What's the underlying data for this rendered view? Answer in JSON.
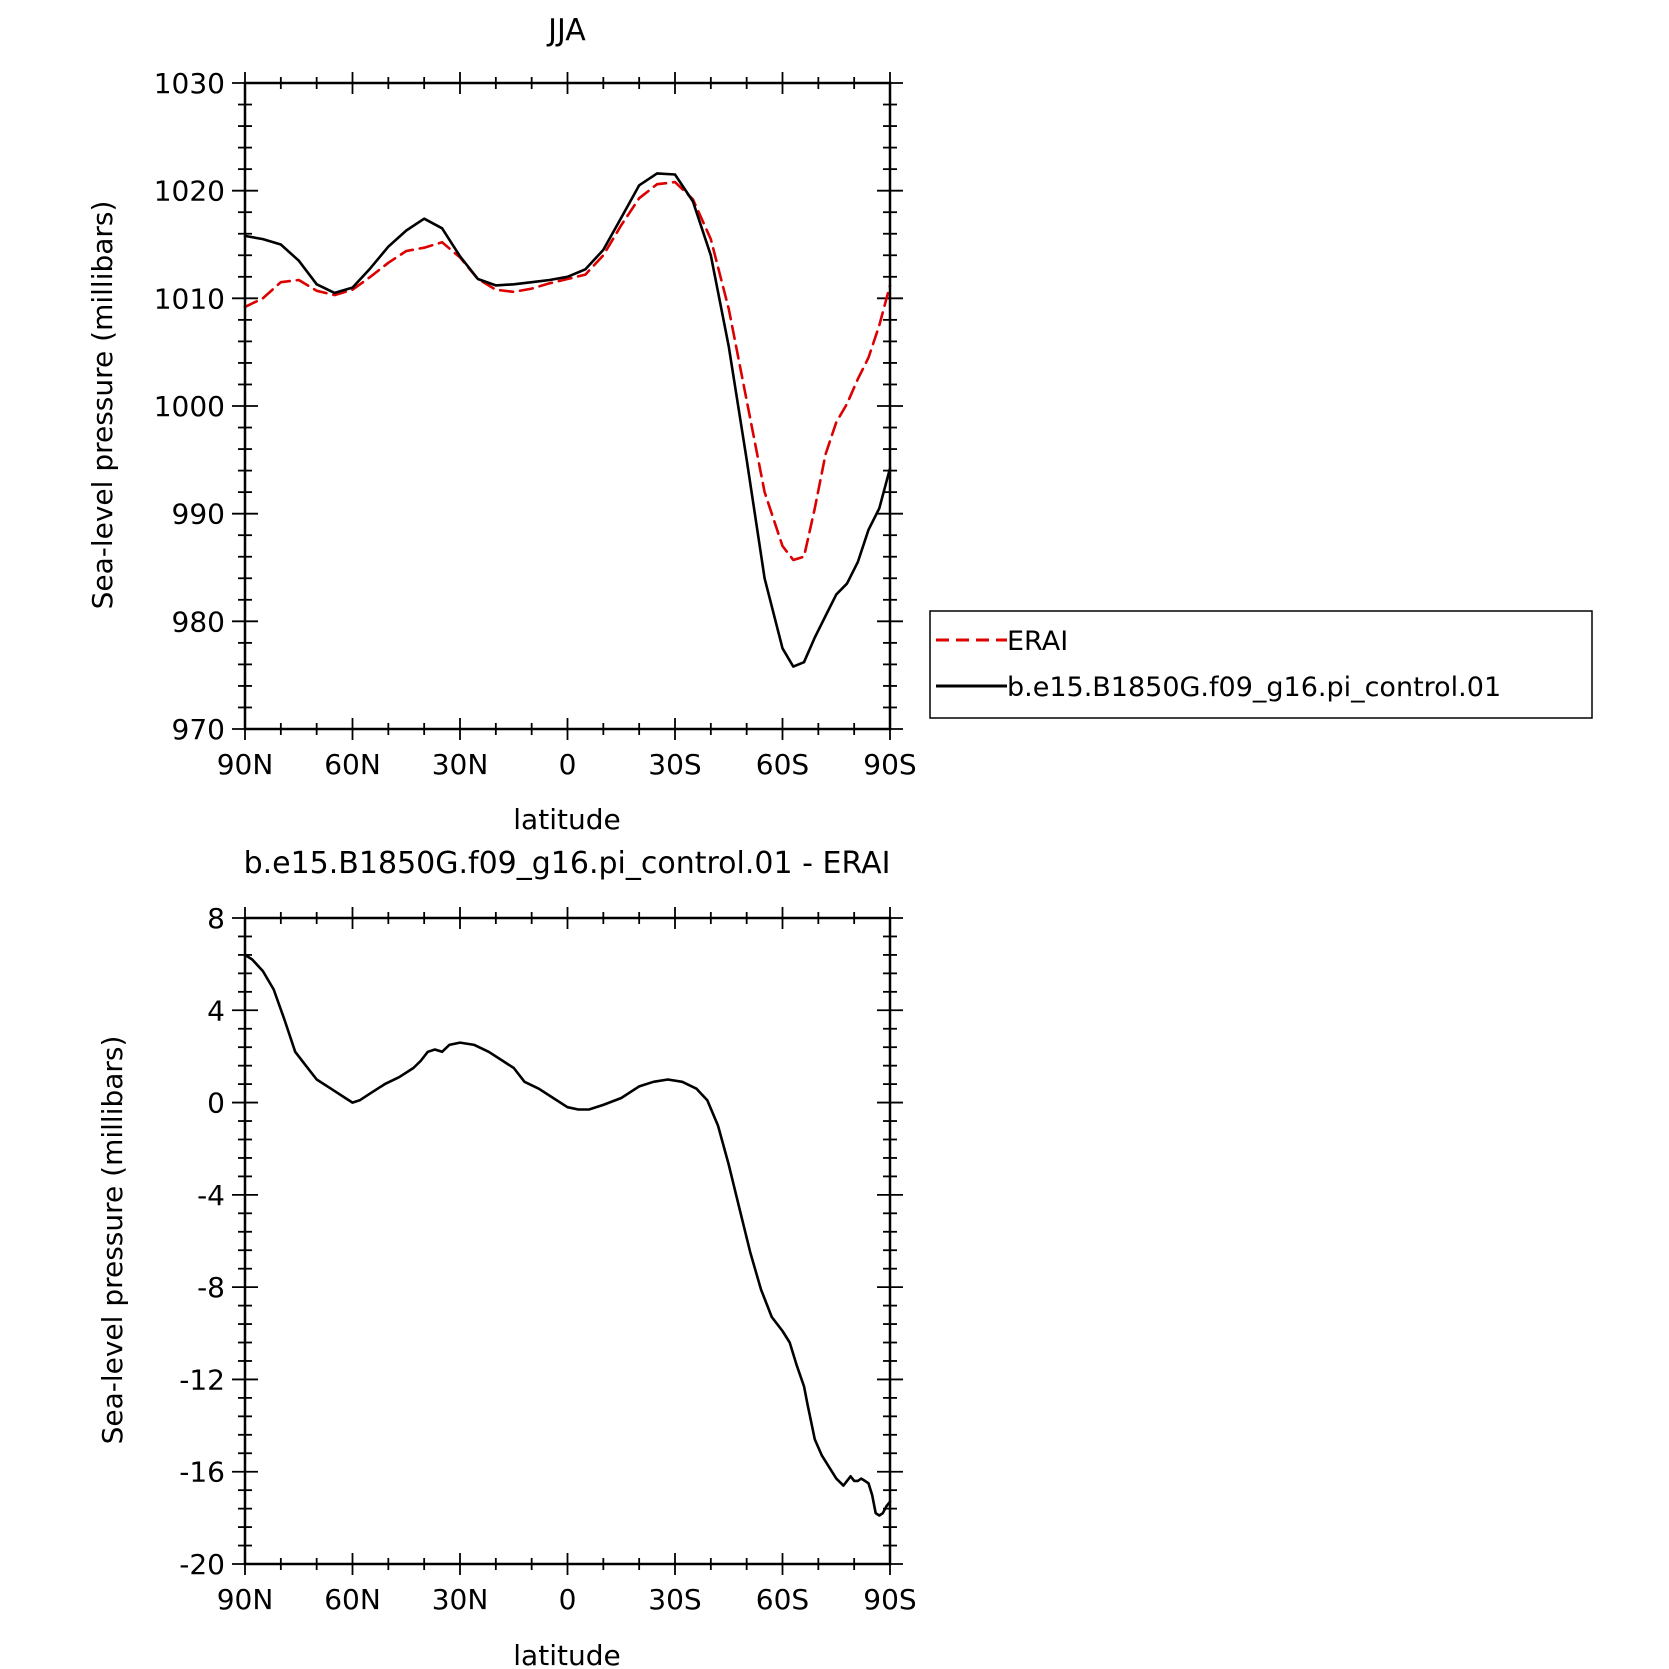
{
  "chart_data": [
    {
      "type": "line",
      "title": "JJA",
      "xlabel": "latitude",
      "ylabel": "Sea-level pressure (millibars)",
      "xlim": [
        90,
        -90
      ],
      "ylim": [
        970,
        1030
      ],
      "x_ticks": [
        {
          "value": 90,
          "label": "90N"
        },
        {
          "value": 60,
          "label": "60N"
        },
        {
          "value": 30,
          "label": "30N"
        },
        {
          "value": 0,
          "label": "0"
        },
        {
          "value": -30,
          "label": "30S"
        },
        {
          "value": -60,
          "label": "60S"
        },
        {
          "value": -90,
          "label": "90S"
        }
      ],
      "y_ticks": [
        {
          "value": 1030,
          "label": "1030"
        },
        {
          "value": 1020,
          "label": "1020"
        },
        {
          "value": 1010,
          "label": "1010"
        },
        {
          "value": 1000,
          "label": "1000"
        },
        {
          "value": 990,
          "label": "990"
        },
        {
          "value": 980,
          "label": "980"
        },
        {
          "value": 970,
          "label": "970"
        }
      ],
      "legend": "right",
      "series": [
        {
          "name": "ERAI",
          "color": "#dd0000",
          "dash": true,
          "x": [
            90,
            85,
            80,
            75,
            70,
            65,
            60,
            55,
            50,
            45,
            40,
            35,
            30,
            25,
            20,
            15,
            10,
            5,
            0,
            -5,
            -10,
            -15,
            -20,
            -25,
            -30,
            -35,
            -40,
            -45,
            -50,
            -55,
            -60,
            -63,
            -66,
            -69,
            -72,
            -75,
            -78,
            -81,
            -84,
            -87,
            -90
          ],
          "y": [
            1009.2,
            1010.0,
            1011.5,
            1011.7,
            1010.7,
            1010.3,
            1010.8,
            1012.0,
            1013.3,
            1014.4,
            1014.7,
            1015.2,
            1013.8,
            1011.8,
            1010.8,
            1010.6,
            1010.9,
            1011.4,
            1011.8,
            1012.2,
            1014.0,
            1016.8,
            1019.3,
            1020.6,
            1020.8,
            1019.2,
            1015.5,
            1009.0,
            1000.5,
            992.0,
            987.0,
            985.7,
            986.0,
            990.5,
            995.5,
            998.5,
            1000.2,
            1002.5,
            1004.5,
            1007.5,
            1011.2
          ]
        },
        {
          "name": "b.e15.B1850G.f09_g16.pi_control.01",
          "color": "#000000",
          "dash": false,
          "x": [
            90,
            85,
            80,
            75,
            70,
            65,
            60,
            55,
            50,
            45,
            40,
            35,
            30,
            25,
            20,
            15,
            10,
            5,
            0,
            -5,
            -10,
            -15,
            -20,
            -25,
            -30,
            -35,
            -40,
            -45,
            -50,
            -55,
            -60,
            -63,
            -66,
            -69,
            -72,
            -75,
            -78,
            -81,
            -84,
            -87,
            -90
          ],
          "y": [
            1015.8,
            1015.5,
            1015.0,
            1013.5,
            1011.3,
            1010.5,
            1011.0,
            1012.8,
            1014.8,
            1016.3,
            1017.4,
            1016.5,
            1013.9,
            1011.8,
            1011.2,
            1011.3,
            1011.5,
            1011.7,
            1012.0,
            1012.7,
            1014.5,
            1017.5,
            1020.5,
            1021.6,
            1021.5,
            1019.0,
            1014.0,
            1005.5,
            995.0,
            984.0,
            977.5,
            975.8,
            976.2,
            978.5,
            980.5,
            982.5,
            983.5,
            985.5,
            988.5,
            990.5,
            994.2
          ]
        }
      ]
    },
    {
      "type": "line",
      "title": "b.e15.B1850G.f09_g16.pi_control.01 - ERAI",
      "xlabel": "latitude",
      "ylabel": "Sea-level pressure (millibars)",
      "xlim": [
        90,
        -90
      ],
      "ylim": [
        -20,
        8
      ],
      "x_ticks": [
        {
          "value": 90,
          "label": "90N"
        },
        {
          "value": 60,
          "label": "60N"
        },
        {
          "value": 30,
          "label": "30N"
        },
        {
          "value": 0,
          "label": "0"
        },
        {
          "value": -30,
          "label": "30S"
        },
        {
          "value": -60,
          "label": "60S"
        },
        {
          "value": -90,
          "label": "90S"
        }
      ],
      "y_ticks": [
        {
          "value": 8,
          "label": "8"
        },
        {
          "value": 4,
          "label": "4"
        },
        {
          "value": 0,
          "label": "0"
        },
        {
          "value": -4,
          "label": "-4"
        },
        {
          "value": -8,
          "label": "-8"
        },
        {
          "value": -12,
          "label": "-12"
        },
        {
          "value": -16,
          "label": "-16"
        },
        {
          "value": -20,
          "label": "-20"
        }
      ],
      "series": [
        {
          "color": "#000000",
          "dash": false,
          "x": [
            90,
            88,
            85,
            82,
            79,
            76,
            73,
            70,
            66,
            62,
            60,
            58,
            55,
            51,
            47,
            43,
            41,
            39,
            37,
            35,
            33,
            30,
            26,
            22,
            18,
            15,
            12,
            8,
            4,
            0,
            -3,
            -6,
            -10,
            -15,
            -20,
            -24,
            -28,
            -32,
            -36,
            -39,
            -42,
            -45,
            -48,
            -51,
            -54,
            -57,
            -60,
            -62,
            -64,
            -66,
            -67,
            -69,
            -71,
            -73,
            -75,
            -77,
            -79,
            -80,
            -81,
            -82,
            -83,
            -84,
            -85,
            -86,
            -87,
            -88,
            -89,
            -90
          ],
          "y": [
            6.4,
            6.2,
            5.7,
            4.9,
            3.6,
            2.2,
            1.6,
            1.0,
            0.6,
            0.2,
            0.0,
            0.1,
            0.4,
            0.8,
            1.1,
            1.5,
            1.8,
            2.2,
            2.3,
            2.2,
            2.5,
            2.6,
            2.5,
            2.2,
            1.8,
            1.5,
            0.9,
            0.6,
            0.2,
            -0.2,
            -0.3,
            -0.3,
            -0.1,
            0.2,
            0.7,
            0.9,
            1.0,
            0.9,
            0.6,
            0.1,
            -1.0,
            -2.7,
            -4.6,
            -6.5,
            -8.1,
            -9.3,
            -9.9,
            -10.4,
            -11.4,
            -12.3,
            -13.1,
            -14.6,
            -15.3,
            -15.8,
            -16.3,
            -16.6,
            -16.2,
            -16.4,
            -16.4,
            -16.3,
            -16.4,
            -16.5,
            -17.0,
            -17.8,
            -17.9,
            -17.8,
            -17.5,
            -17.3
          ]
        }
      ]
    }
  ]
}
